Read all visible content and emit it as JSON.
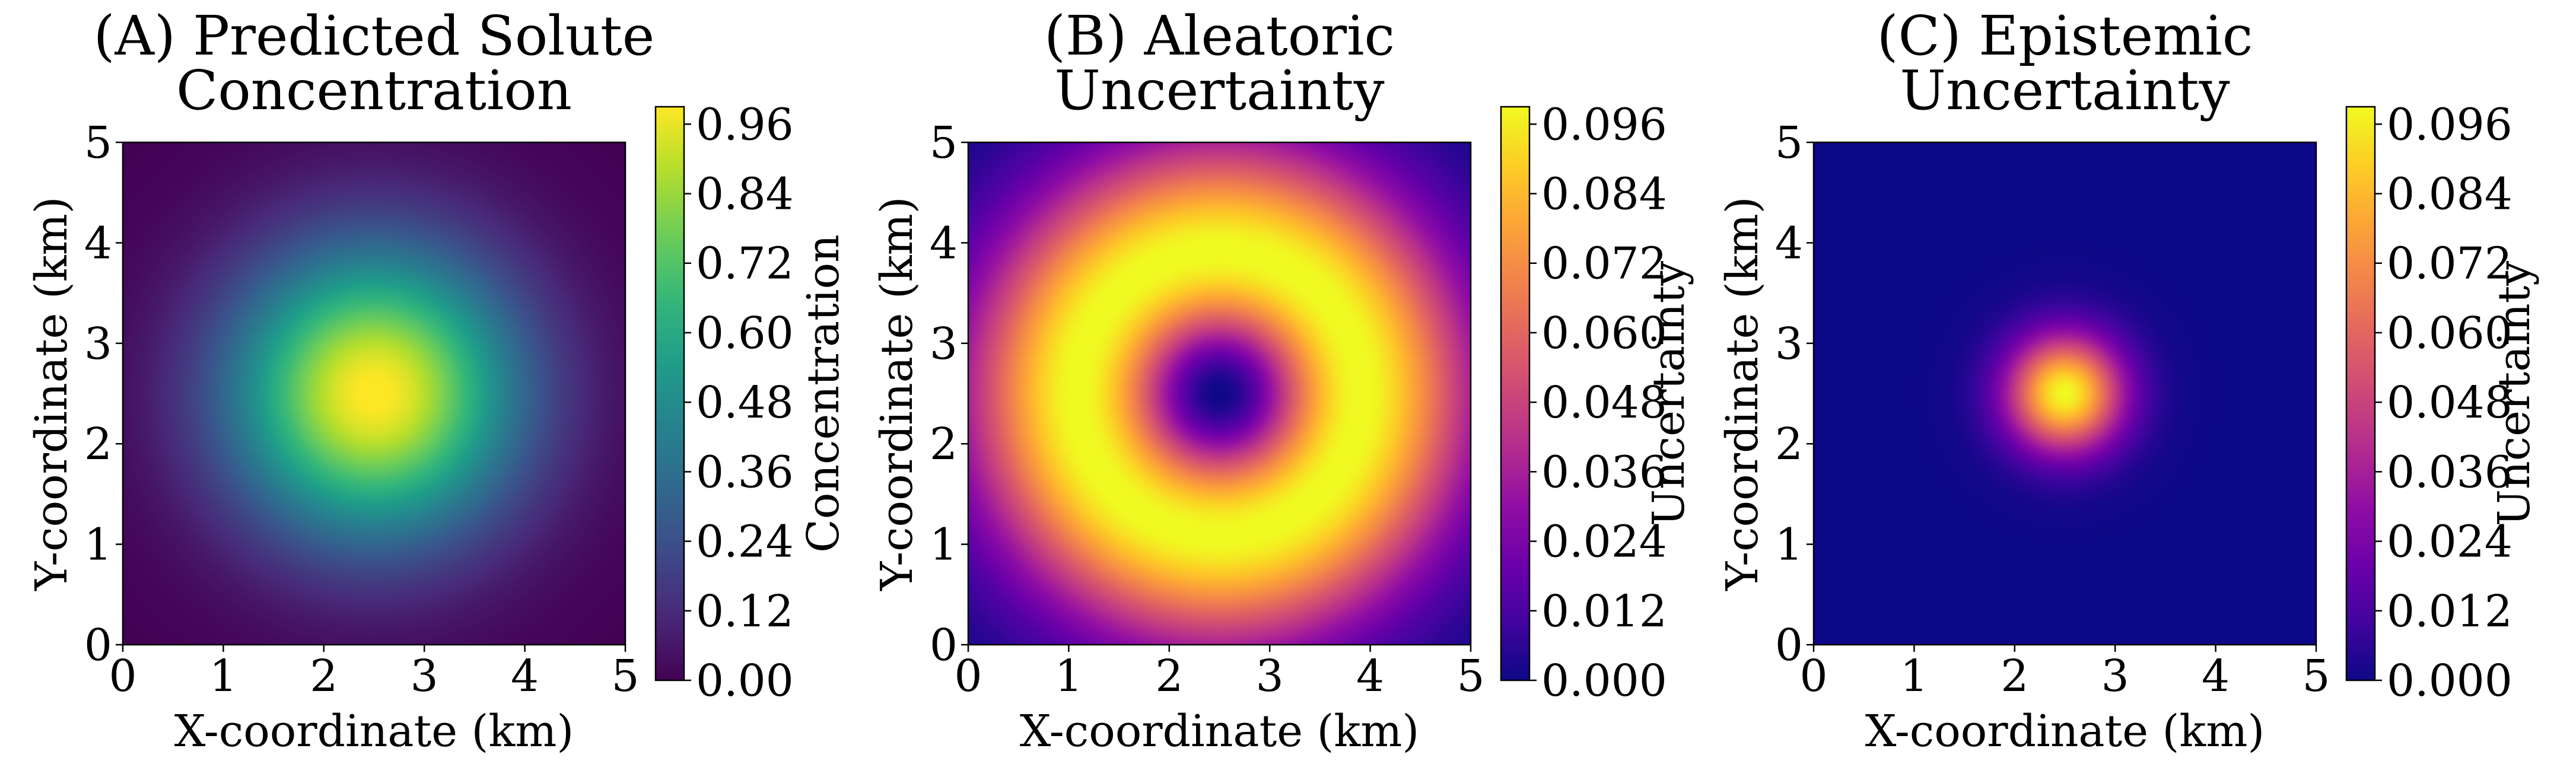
{
  "chart_data": [
    {
      "type": "heatmap",
      "id": "A",
      "title": [
        "(A) Predicted Solute",
        "Concentration"
      ],
      "xlabel": "X-coordinate (km)",
      "ylabel": "Y-coordinate (km)",
      "xlim": [
        0,
        5
      ],
      "ylim": [
        0,
        5
      ],
      "x_ticks": [
        "0",
        "1",
        "2",
        "3",
        "4",
        "5"
      ],
      "y_ticks": [
        "0",
        "1",
        "2",
        "3",
        "4",
        "5"
      ],
      "colormap": "viridis",
      "field": {
        "kind": "gaussian",
        "center": [
          2.5,
          2.5
        ],
        "sigma": 1.0,
        "max": 1.0
      },
      "colorbar": {
        "label": "Concentration",
        "range": [
          0.0,
          0.99
        ],
        "ticks": [
          "0.00",
          "0.12",
          "0.24",
          "0.36",
          "0.48",
          "0.60",
          "0.72",
          "0.84",
          "0.96"
        ]
      }
    },
    {
      "type": "heatmap",
      "id": "B",
      "title": [
        "(B) Aleatoric",
        "Uncertainty"
      ],
      "xlabel": "X-coordinate (km)",
      "ylabel": "Y-coordinate (km)",
      "xlim": [
        0,
        5
      ],
      "ylim": [
        0,
        5
      ],
      "x_ticks": [
        "0",
        "1",
        "2",
        "3",
        "4",
        "5"
      ],
      "y_ticks": [
        "0",
        "1",
        "2",
        "3",
        "4",
        "5"
      ],
      "colormap": "plasma",
      "field": {
        "kind": "ring",
        "center": [
          2.5,
          2.5
        ],
        "sigma": 1.0,
        "max": 0.1
      },
      "colorbar": {
        "label": "Uncertainty",
        "range": [
          0.0,
          0.099
        ],
        "ticks": [
          "0.000",
          "0.012",
          "0.024",
          "0.036",
          "0.048",
          "0.060",
          "0.072",
          "0.084",
          "0.096"
        ]
      }
    },
    {
      "type": "heatmap",
      "id": "C",
      "title": [
        "(C) Epistemic",
        "Uncertainty"
      ],
      "xlabel": "X-coordinate (km)",
      "ylabel": "Y-coordinate (km)",
      "xlim": [
        0,
        5
      ],
      "ylim": [
        0,
        5
      ],
      "x_ticks": [
        "0",
        "1",
        "2",
        "3",
        "4",
        "5"
      ],
      "y_ticks": [
        "0",
        "1",
        "2",
        "3",
        "4",
        "5"
      ],
      "colormap": "plasma",
      "field": {
        "kind": "gaussian",
        "center": [
          2.5,
          2.5
        ],
        "sigma": 0.4,
        "max": 0.099
      },
      "colorbar": {
        "label": "Uncertainty",
        "range": [
          0.0,
          0.099
        ],
        "ticks": [
          "0.000",
          "0.012",
          "0.024",
          "0.036",
          "0.048",
          "0.060",
          "0.072",
          "0.084",
          "0.096"
        ]
      }
    }
  ]
}
